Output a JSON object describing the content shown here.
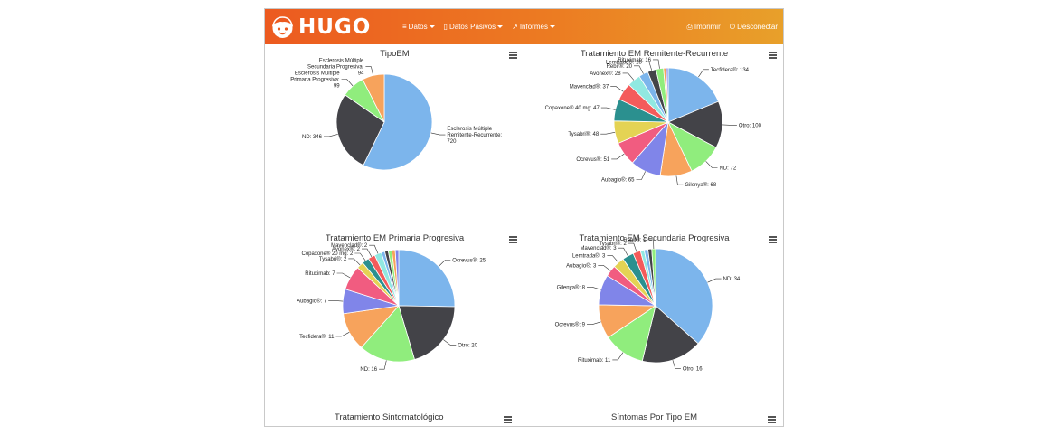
{
  "app": {
    "name": "HUGO",
    "menu": [
      {
        "icon": "database-icon",
        "label": "Datos"
      },
      {
        "icon": "mobile-icon",
        "label": "Datos Pasivos"
      },
      {
        "icon": "chart-icon",
        "label": "Informes"
      }
    ],
    "actions": [
      {
        "icon": "printer-icon",
        "label": "Imprimir"
      },
      {
        "icon": "power-icon",
        "label": "Desconectar"
      }
    ]
  },
  "bottom_titles": [
    "Tratamiento Sintomatológico",
    "Síntomas Por Tipo EM"
  ],
  "chart_data": [
    {
      "type": "pie",
      "title": "TipoEM",
      "slices": [
        {
          "label": "Esclerosis Múltiple Remitente-Recurrente",
          "value": 720,
          "color": "#7cb5ec"
        },
        {
          "label": "ND",
          "value": 346,
          "color": "#434348"
        },
        {
          "label": "Esclerosis Múltiple Primaria Progresiva",
          "value": 99,
          "color": "#90ed7d"
        },
        {
          "label": "Esclerosis Múltiple Secundaria Progresiva",
          "value": 94,
          "color": "#f7a35c"
        }
      ]
    },
    {
      "type": "pie",
      "title": "Tratamiento EM Remitente-Recurrente",
      "slices": [
        {
          "label": "Tecfidera®",
          "value": 134,
          "color": "#7cb5ec"
        },
        {
          "label": "Otro",
          "value": 100,
          "color": "#434348"
        },
        {
          "label": "ND",
          "value": 72,
          "color": "#90ed7d"
        },
        {
          "label": "Gilenya®",
          "value": 68,
          "color": "#f7a35c"
        },
        {
          "label": "Aubagio®",
          "value": 65,
          "color": "#8085e9"
        },
        {
          "label": "Ocrevus®",
          "value": 51,
          "color": "#f15c80"
        },
        {
          "label": "Tysabri®",
          "value": 48,
          "color": "#e4d354"
        },
        {
          "label": "Copaxone® 40 mg",
          "value": 47,
          "color": "#2b908f"
        },
        {
          "label": "Mavenclad®",
          "value": 37,
          "color": "#f45b5b"
        },
        {
          "label": "Avonex®",
          "value": 28,
          "color": "#91e8e1"
        },
        {
          "label": "Rebif®",
          "value": 20,
          "color": "#7cb5ec"
        },
        {
          "label": "Lemtrada®",
          "value": 18,
          "color": "#434348"
        },
        {
          "label": "Rituximab",
          "value": 16,
          "color": "#90ed7d"
        },
        {
          "label": "",
          "value": 6,
          "color": "#f7a35c"
        },
        {
          "label": "",
          "value": 4,
          "color": "#8085e9"
        }
      ]
    },
    {
      "type": "pie",
      "title": "Tratamiento EM Primaria Progresiva",
      "slices": [
        {
          "label": "Ocrevus®",
          "value": 25,
          "color": "#7cb5ec"
        },
        {
          "label": "Otro",
          "value": 20,
          "color": "#434348"
        },
        {
          "label": "ND",
          "value": 16,
          "color": "#90ed7d"
        },
        {
          "label": "Tecfidera®",
          "value": 11,
          "color": "#f7a35c"
        },
        {
          "label": "Aubagio®",
          "value": 7,
          "color": "#8085e9"
        },
        {
          "label": "Rituximab",
          "value": 7,
          "color": "#f15c80"
        },
        {
          "label": "Tysabri®",
          "value": 2,
          "color": "#e4d354"
        },
        {
          "label": "Copaxone® 20 mg",
          "value": 2,
          "color": "#2b908f"
        },
        {
          "label": "Avonex®",
          "value": 2,
          "color": "#f45b5b"
        },
        {
          "label": "Mavenclad®",
          "value": 2,
          "color": "#91e8e1"
        },
        {
          "label": "",
          "value": 1,
          "color": "#7cb5ec"
        },
        {
          "label": "",
          "value": 1,
          "color": "#434348"
        },
        {
          "label": "",
          "value": 1,
          "color": "#90ed7d"
        },
        {
          "label": "",
          "value": 1,
          "color": "#f7a35c"
        },
        {
          "label": "",
          "value": 1,
          "color": "#8085e9"
        }
      ]
    },
    {
      "type": "pie",
      "title": "Tratamiento EM Secundaria Progresiva",
      "slices": [
        {
          "label": "ND",
          "value": 34,
          "color": "#7cb5ec"
        },
        {
          "label": "Otro",
          "value": 16,
          "color": "#434348"
        },
        {
          "label": "Rituximab",
          "value": 11,
          "color": "#90ed7d"
        },
        {
          "label": "Ocrevus®",
          "value": 9,
          "color": "#f7a35c"
        },
        {
          "label": "Gilenya®",
          "value": 8,
          "color": "#8085e9"
        },
        {
          "label": "Aubagio®",
          "value": 3,
          "color": "#f15c80"
        },
        {
          "label": "Lemtrada®",
          "value": 3,
          "color": "#e4d354"
        },
        {
          "label": "Mavenclad®",
          "value": 3,
          "color": "#2b908f"
        },
        {
          "label": "Tysabri®",
          "value": 2,
          "color": "#f45b5b"
        },
        {
          "label": "",
          "value": 1,
          "color": "#91e8e1"
        },
        {
          "label": "",
          "value": 1,
          "color": "#7cb5ec"
        },
        {
          "label": "",
          "value": 1,
          "color": "#434348"
        },
        {
          "label": "Rebif®",
          "value": 1,
          "color": "#90ed7d"
        }
      ]
    }
  ]
}
